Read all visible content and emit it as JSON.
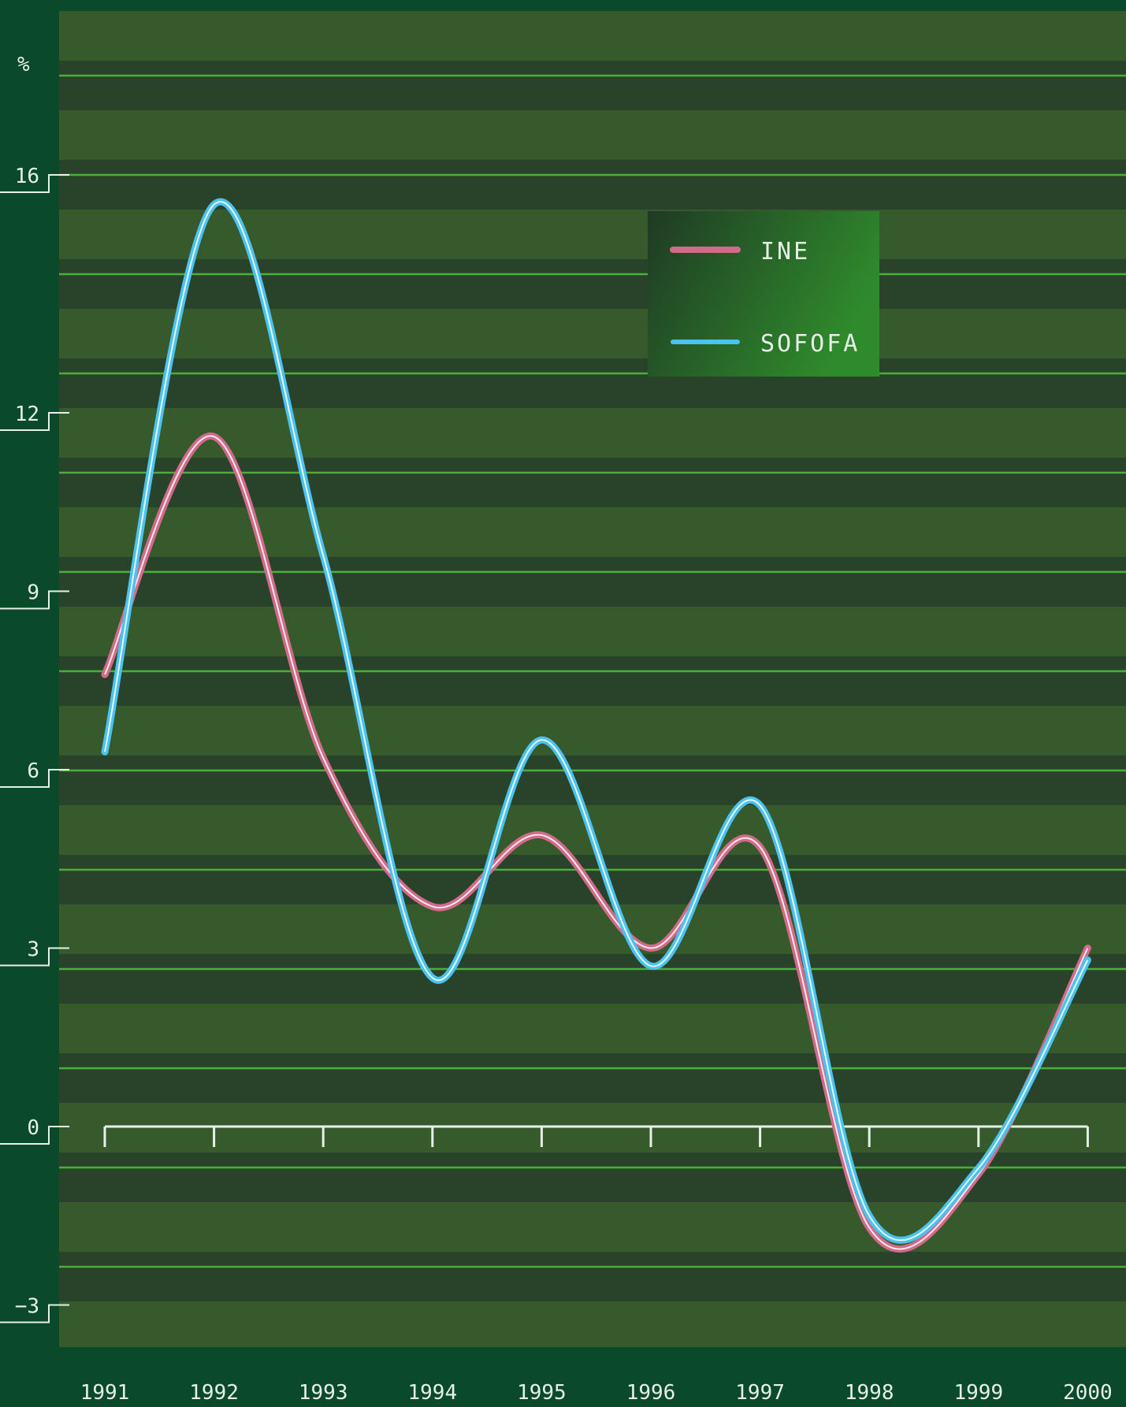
{
  "chart_data": {
    "type": "line",
    "unit_label": "%",
    "x": [
      "1991",
      "1992",
      "1993",
      "1994",
      "1995",
      "1996",
      "1997",
      "1998",
      "1999",
      "2000"
    ],
    "series": [
      {
        "name": "INE",
        "color": "#d26a8a",
        "values": [
          7.6,
          11.6,
          6.2,
          3.7,
          4.9,
          3.0,
          4.7,
          -1.7,
          -0.8,
          3.0
        ]
      },
      {
        "name": "SOFOFA",
        "color": "#4bc3ee",
        "values": [
          6.3,
          15.5,
          9.6,
          2.5,
          6.5,
          2.7,
          5.4,
          -1.5,
          -0.7,
          2.8
        ]
      }
    ],
    "y_ticks": [
      -3,
      0,
      3,
      6,
      9,
      12,
      16
    ],
    "y_tick_labels": [
      "−3",
      "0",
      "3",
      "6",
      "9",
      "12",
      "16"
    ],
    "ylim": [
      -3.5,
      17.5
    ],
    "legend_position": "top-center-right",
    "colors": {
      "background": "#0a4a2a",
      "band_dark": "#28432a",
      "band_light": "#365a2c",
      "grid": "#4cae3a"
    }
  }
}
